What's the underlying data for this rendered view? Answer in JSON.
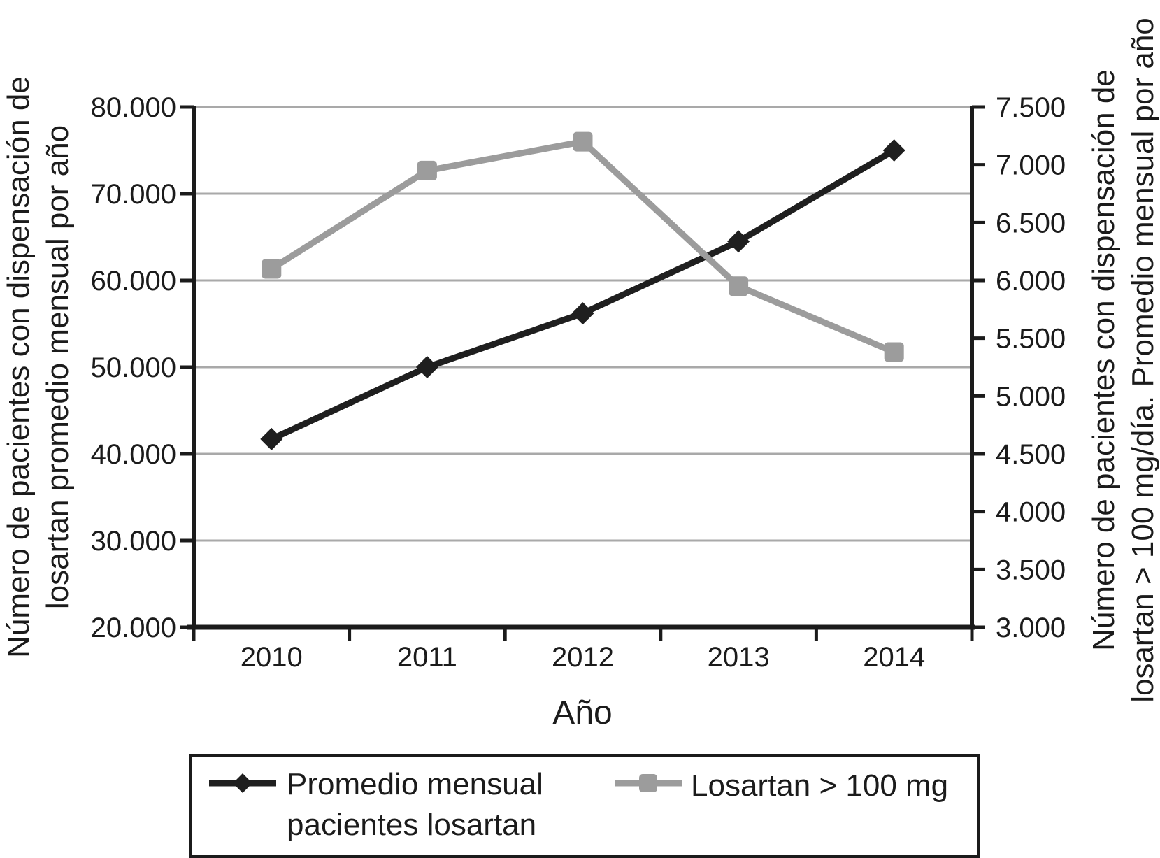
{
  "figure": {
    "background": "#ffffff",
    "text_color": "#1b1b1b"
  },
  "chart_data": {
    "type": "line",
    "categories": [
      "2010",
      "2011",
      "2012",
      "2013",
      "2014"
    ],
    "xlabel": "Año",
    "series": [
      {
        "name": "Promedio mensual pacientes losartan",
        "axis": "left",
        "color": "#1f1f1f",
        "marker": "diamond",
        "values": [
          41700,
          50000,
          56200,
          64500,
          75000
        ]
      },
      {
        "name": "Losartan > 100 mg",
        "axis": "right",
        "color": "#9c9c9c",
        "marker": "square",
        "values": [
          6100,
          6950,
          7200,
          5950,
          5380
        ]
      }
    ],
    "left_axis": {
      "title": "Número de pacientes con dispensación de losartan promedio mensual por año",
      "title_line1": "Número de pacientes con dispensación de",
      "title_line2": "losartan promedio mensual por año",
      "min": 20000,
      "max": 80000,
      "step": 10000,
      "tick_labels": [
        "80.000",
        "70.000",
        "60.000",
        "50.000",
        "40.000",
        "30.000",
        "20.000"
      ]
    },
    "right_axis": {
      "title": "Número de pacientes con dispensación de losartan > 100 mg/día. Promedio mensual por año",
      "title_line1": "Número de pacientes con dispensación de",
      "title_line2": "losartan > 100 mg/día. Promedio mensual por año",
      "min": 3000,
      "max": 7500,
      "step": 500,
      "tick_labels": [
        "7.500",
        "7.000",
        "6.500",
        "6.000",
        "5.500",
        "5.000",
        "4.500",
        "4.000",
        "3.500",
        "3.000"
      ]
    },
    "grid": true,
    "gridline_color": "#a9a9a9",
    "axis_color": "#1b1b1b",
    "legend": {
      "position": "bottom",
      "entries": [
        {
          "label": "Promedio mensual pacientes losartan",
          "label_line1": "Promedio mensual",
          "label_line2": "pacientes losartan",
          "marker": "diamond",
          "color": "#1f1f1f"
        },
        {
          "label": "Losartan > 100 mg",
          "label_line1": "Losartan > 100 mg",
          "label_line2": "",
          "marker": "square",
          "color": "#9c9c9c"
        }
      ]
    }
  }
}
